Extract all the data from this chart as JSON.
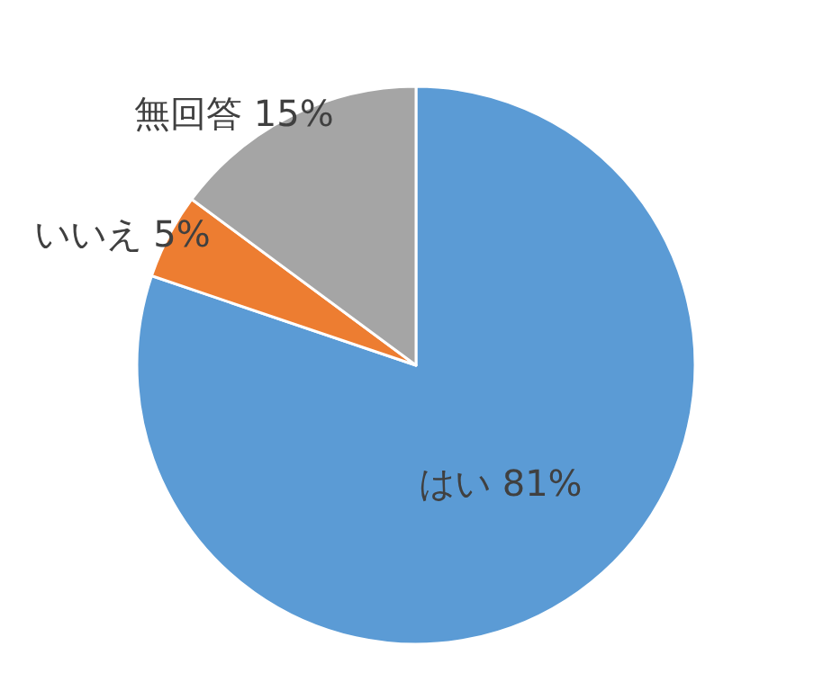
{
  "chart_data": {
    "type": "pie",
    "categories": [
      "はい",
      "いいえ",
      "無回答"
    ],
    "values": [
      81,
      5,
      15
    ],
    "colors": [
      "#5b9bd5",
      "#ed7d31",
      "#a5a5a5"
    ],
    "value_labels": [
      "81%",
      "5%",
      "15%"
    ]
  }
}
